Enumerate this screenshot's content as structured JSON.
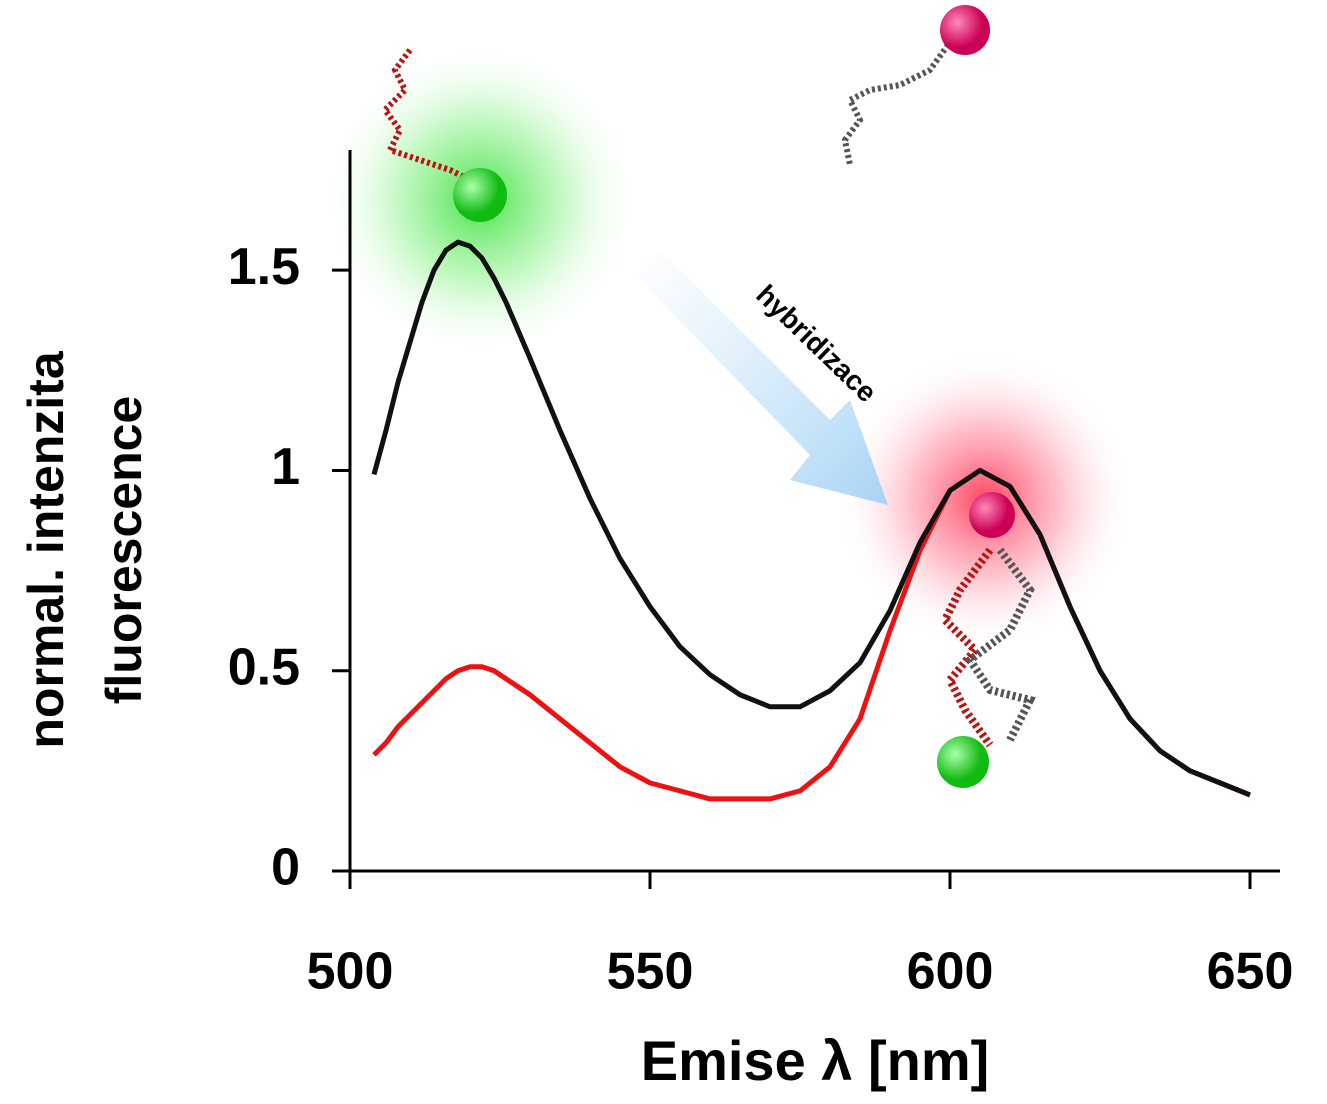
{
  "chart_data": {
    "type": "line",
    "x": [
      504,
      506,
      508,
      510,
      512,
      514,
      516,
      518,
      520,
      522,
      524,
      526,
      528,
      530,
      535,
      540,
      545,
      550,
      555,
      560,
      565,
      570,
      575,
      580,
      585,
      590,
      595,
      600,
      605,
      610,
      615,
      620,
      625,
      630,
      635,
      640,
      645,
      650
    ],
    "series": [
      {
        "color": "#111111",
        "values": [
          0.99,
          1.1,
          1.22,
          1.32,
          1.42,
          1.5,
          1.55,
          1.57,
          1.56,
          1.53,
          1.48,
          1.42,
          1.35,
          1.28,
          1.1,
          0.93,
          0.78,
          0.66,
          0.56,
          0.49,
          0.44,
          0.41,
          0.41,
          0.45,
          0.52,
          0.65,
          0.82,
          0.95,
          1.0,
          0.96,
          0.84,
          0.66,
          0.5,
          0.38,
          0.3,
          0.25,
          0.22,
          0.19
        ]
      },
      {
        "color": "#ee1111",
        "values": [
          0.29,
          0.32,
          0.36,
          0.39,
          0.42,
          0.45,
          0.48,
          0.5,
          0.51,
          0.51,
          0.5,
          0.48,
          0.46,
          0.44,
          0.38,
          0.32,
          0.26,
          0.22,
          0.2,
          0.18,
          0.18,
          0.18,
          0.2,
          0.26,
          0.38,
          0.6,
          0.8,
          0.95,
          1.0,
          0.96,
          0.84,
          0.66,
          0.5,
          0.38,
          0.3,
          0.25,
          0.22,
          0.19
        ]
      }
    ],
    "xlim": [
      497,
      655
    ],
    "xticks": [
      500,
      550,
      600,
      650
    ],
    "ylim": [
      0,
      1.8
    ],
    "yticks": [
      0,
      0.5,
      1,
      1.5
    ],
    "ylabel": [
      "normal. intenzita",
      "fluorescence"
    ],
    "xlabel": "Emise λ [nm]",
    "annotation": "hybridizace"
  }
}
